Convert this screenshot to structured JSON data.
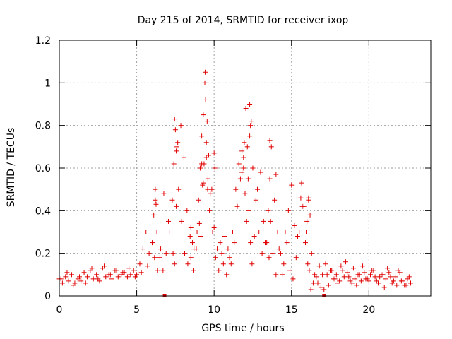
{
  "chart_data": {
    "type": "scatter",
    "title": "Day 215 of 2014, SRMTID for receiver ixop",
    "xlabel": "GPS time / hours",
    "ylabel": "SRMTID / TECUs",
    "xlim": [
      0,
      24
    ],
    "ylim": [
      0,
      1.2
    ],
    "xticks": [
      0,
      5,
      10,
      15,
      20
    ],
    "xtick_labels": [
      "0",
      "5",
      "10",
      "15",
      "20"
    ],
    "yticks": [
      0,
      0.2,
      0.4,
      0.6,
      0.8,
      1,
      1.2
    ],
    "ytick_labels": [
      "0",
      "0.2",
      "0.4",
      "0.6",
      "0.8",
      "1",
      "1.2"
    ],
    "grid": true,
    "marker": "plus",
    "color": "#e00000",
    "series": [
      {
        "name": "SRMTID",
        "x": [
          0.0,
          0.2,
          0.4,
          0.6,
          0.8,
          1.0,
          1.2,
          1.4,
          1.6,
          1.8,
          2.0,
          2.2,
          2.4,
          2.6,
          2.8,
          3.0,
          3.2,
          3.4,
          3.6,
          3.8,
          4.0,
          4.2,
          4.4,
          4.6,
          4.8,
          5.0,
          5.2,
          5.4,
          5.6,
          5.8,
          6.0,
          6.1,
          6.2,
          6.3,
          6.5,
          6.7,
          6.9,
          7.1,
          7.3,
          7.4,
          7.5,
          7.6,
          7.7,
          7.9,
          8.1,
          8.3,
          8.5,
          8.7,
          8.9,
          9.0,
          9.1,
          9.2,
          9.3,
          9.4,
          9.5,
          9.6,
          9.7,
          9.9,
          10.1,
          10.3,
          10.5,
          10.7,
          10.9,
          11.1,
          11.3,
          11.5,
          11.7,
          11.9,
          12.0,
          12.1,
          12.2,
          12.3,
          12.4,
          12.5,
          12.7,
          12.9,
          13.1,
          13.3,
          13.5,
          13.6,
          13.7,
          13.9,
          14.1,
          14.3,
          14.5,
          14.7,
          14.9,
          15.1,
          15.3,
          15.5,
          15.7,
          15.9,
          16.0,
          16.1,
          16.2,
          16.3,
          16.5,
          16.7,
          16.9,
          17.1,
          17.3,
          17.5,
          17.7,
          17.9,
          18.1,
          18.3,
          18.5,
          18.7,
          18.9,
          19.1,
          19.3,
          19.5,
          19.7,
          19.9,
          20.1,
          20.3,
          20.5,
          20.7,
          20.9,
          21.1,
          21.3,
          21.5,
          21.7,
          21.9,
          22.1,
          22.3,
          22.5,
          22.7,
          0.1,
          0.5,
          0.9,
          1.3,
          1.7,
          2.1,
          2.5,
          2.9,
          3.3,
          3.7,
          4.1,
          4.5,
          4.9,
          5.3,
          5.7,
          6.15,
          6.35,
          6.55,
          6.75,
          7.05,
          7.35,
          7.45,
          7.55,
          7.65,
          7.85,
          8.05,
          8.25,
          8.45,
          8.65,
          8.85,
          9.05,
          9.15,
          9.25,
          9.35,
          9.45,
          9.55,
          9.65,
          9.75,
          9.85,
          10.0,
          10.2,
          10.4,
          10.6,
          10.8,
          11.0,
          11.2,
          11.4,
          11.6,
          11.8,
          11.95,
          12.05,
          12.15,
          12.25,
          12.35,
          12.45,
          12.6,
          12.8,
          13.0,
          13.2,
          13.4,
          13.55,
          13.65,
          13.8,
          14.0,
          14.2,
          14.4,
          14.6,
          14.8,
          15.0,
          15.2,
          15.4,
          15.6,
          15.8,
          15.95,
          16.05,
          16.15,
          16.25,
          16.4,
          16.6,
          16.8,
          17.0,
          17.2,
          17.4,
          17.6,
          17.8,
          18.0,
          18.2,
          18.4,
          18.6,
          18.8,
          19.0,
          19.2,
          19.4,
          19.6,
          19.8,
          20.0,
          20.2,
          20.4,
          20.6,
          20.8,
          21.0,
          21.2,
          21.4,
          21.6,
          21.8,
          22.0,
          22.2,
          22.4,
          22.6,
          9.3,
          9.42,
          9.5,
          7.45,
          7.55,
          12.3,
          12.35,
          13.6,
          14.0,
          15.65,
          16.1,
          6.2,
          6.25,
          11.8,
          11.9,
          10.0,
          10.05,
          9.2,
          9.58,
          8.5,
          8.6
        ],
        "y": [
          0.08,
          0.06,
          0.09,
          0.07,
          0.1,
          0.06,
          0.08,
          0.07,
          0.11,
          0.09,
          0.12,
          0.08,
          0.1,
          0.07,
          0.13,
          0.09,
          0.1,
          0.08,
          0.12,
          0.09,
          0.1,
          0.11,
          0.09,
          0.1,
          0.12,
          0.1,
          0.15,
          0.22,
          0.3,
          0.2,
          0.25,
          0.38,
          0.45,
          0.3,
          0.18,
          0.12,
          0.2,
          0.3,
          0.45,
          0.62,
          0.78,
          0.7,
          0.5,
          0.35,
          0.2,
          0.15,
          0.18,
          0.22,
          0.3,
          0.45,
          0.6,
          0.75,
          0.85,
          1.0,
          0.72,
          0.55,
          0.4,
          0.3,
          0.18,
          0.12,
          0.2,
          0.28,
          0.22,
          0.15,
          0.25,
          0.42,
          0.55,
          0.6,
          0.48,
          0.35,
          0.55,
          0.75,
          0.82,
          0.6,
          0.45,
          0.3,
          0.2,
          0.25,
          0.4,
          0.55,
          0.7,
          0.45,
          0.3,
          0.2,
          0.15,
          0.25,
          0.12,
          0.08,
          0.18,
          0.3,
          0.42,
          0.25,
          0.35,
          0.45,
          0.38,
          0.2,
          0.1,
          0.06,
          0.04,
          0.03,
          0.1,
          0.12,
          0.08,
          0.1,
          0.07,
          0.12,
          0.16,
          0.09,
          0.06,
          0.08,
          0.1,
          0.07,
          0.11,
          0.08,
          0.1,
          0.12,
          0.07,
          0.09,
          0.1,
          0.08,
          0.11,
          0.06,
          0.09,
          0.12,
          0.07,
          0.05,
          0.08,
          0.06,
          0.08,
          0.11,
          0.05,
          0.09,
          0.06,
          0.13,
          0.08,
          0.14,
          0.1,
          0.12,
          0.11,
          0.13,
          0.09,
          0.11,
          0.14,
          0.18,
          0.12,
          0.22,
          0.48,
          0.35,
          0.2,
          0.15,
          0.42,
          0.72,
          0.8,
          0.65,
          0.4,
          0.28,
          0.12,
          0.22,
          0.34,
          0.28,
          0.52,
          0.62,
          0.92,
          0.82,
          0.66,
          0.48,
          0.5,
          0.32,
          0.22,
          0.25,
          0.15,
          0.1,
          0.18,
          0.3,
          0.5,
          0.62,
          0.58,
          0.72,
          0.88,
          0.7,
          0.4,
          0.25,
          0.15,
          0.28,
          0.5,
          0.58,
          0.35,
          0.25,
          0.18,
          0.35,
          0.2,
          0.1,
          0.22,
          0.1,
          0.3,
          0.4,
          0.52,
          0.33,
          0.28,
          0.46,
          0.42,
          0.3,
          0.15,
          0.12,
          0.03,
          0.06,
          0.09,
          0.14,
          0.1,
          0.15,
          0.05,
          0.12,
          0.08,
          0.06,
          0.14,
          0.09,
          0.11,
          0.07,
          0.13,
          0.05,
          0.1,
          0.14,
          0.08,
          0.07,
          0.12,
          0.09,
          0.06,
          0.1,
          0.04,
          0.13,
          0.09,
          0.07,
          0.05,
          0.11,
          0.07,
          0.05,
          0.09,
          0.53,
          1.05,
          0.65,
          0.83,
          0.68,
          0.9,
          0.8,
          0.73,
          0.57,
          0.53,
          0.46,
          0.5,
          0.43,
          0.68,
          0.65,
          0.67,
          0.6,
          0.62,
          0.5,
          0.32,
          0.25
        ]
      }
    ],
    "extra_markers": {
      "type": "square",
      "x": [
        6.8,
        17.1
      ],
      "y": [
        0.0,
        0.0
      ]
    }
  }
}
